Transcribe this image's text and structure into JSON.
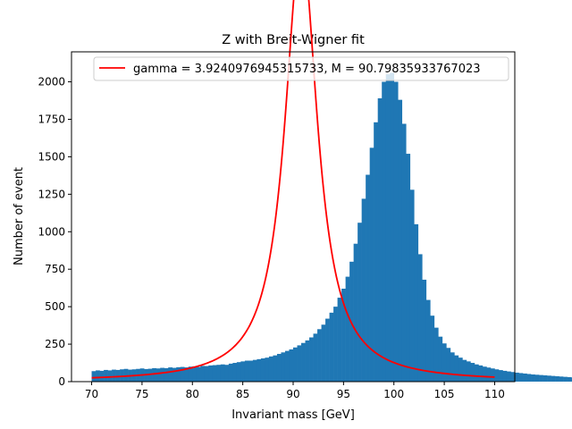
{
  "chart_data": {
    "type": "histogram",
    "title": "Z with Breit-Wigner fit",
    "xlabel": "Invariant mass [GeV]",
    "ylabel": "Number of event",
    "xlim": [
      68,
      112
    ],
    "ylim": [
      0,
      2200
    ],
    "x_ticks": [
      70,
      75,
      80,
      85,
      90,
      95,
      100,
      105,
      110
    ],
    "y_ticks": [
      0,
      250,
      500,
      750,
      1000,
      1250,
      1500,
      1750,
      2000
    ],
    "legend_placement": "top-right",
    "colors": {
      "bars": "#1f77b4",
      "fit": "#ff0000"
    },
    "histogram": {
      "bin_start": 70,
      "bin_width": 0.4,
      "counts": [
        70,
        75,
        72,
        78,
        75,
        80,
        78,
        82,
        85,
        80,
        82,
        85,
        88,
        84,
        86,
        90,
        88,
        92,
        90,
        95,
        92,
        96,
        98,
        95,
        100,
        102,
        98,
        105,
        104,
        108,
        110,
        112,
        115,
        112,
        120,
        125,
        130,
        135,
        140,
        140,
        145,
        150,
        155,
        160,
        168,
        175,
        185,
        195,
        205,
        215,
        228,
        242,
        258,
        275,
        295,
        320,
        350,
        380,
        420,
        460,
        500,
        560,
        620,
        700,
        800,
        920,
        1060,
        1220,
        1380,
        1560,
        1730,
        1890,
        2000,
        2050,
        2060,
        2000,
        1880,
        1720,
        1520,
        1280,
        1050,
        850,
        680,
        545,
        440,
        360,
        300,
        255,
        225,
        195,
        175,
        160,
        145,
        135,
        125,
        115,
        108,
        100,
        94,
        88,
        82,
        77,
        72,
        68,
        64,
        60,
        57,
        54,
        51,
        48,
        46,
        44,
        42,
        40,
        38,
        36,
        34,
        32,
        30,
        28,
        26,
        24
      ]
    },
    "series": [
      {
        "name": "gamma = 3.9240976945315733, M = 90.79835933767023",
        "type": "breit-wigner",
        "gamma": 3.9240976945315733,
        "M": 90.79835933767023,
        "x_range": [
          70,
          110
        ]
      }
    ]
  }
}
